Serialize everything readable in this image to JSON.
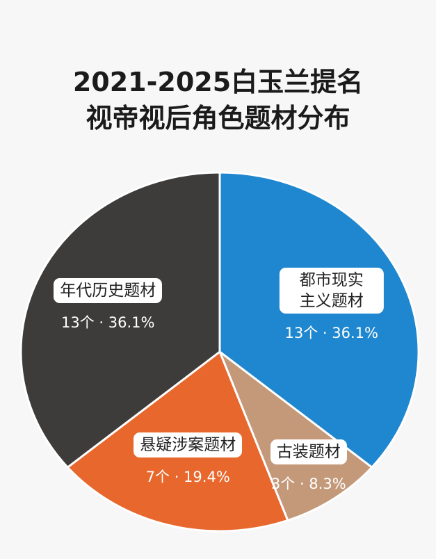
{
  "chart_data": {
    "type": "pie",
    "title": "2021-2025白玉兰提名视帝视后角色题材分布",
    "categories": [
      "都市现实主义题材",
      "古装题材",
      "悬疑涉案题材",
      "年代历史题材"
    ],
    "values": [
      36.1,
      8.3,
      19.4,
      36.1
    ],
    "value_labels": [
      "13个 · 36.1%",
      "3个 · 8.3%",
      "7个 · 19.4%",
      "13个 · 36.1%"
    ],
    "colors": [
      "#1f87cf",
      "#c4997a",
      "#e8672d",
      "#3e3c3a"
    ]
  }
}
